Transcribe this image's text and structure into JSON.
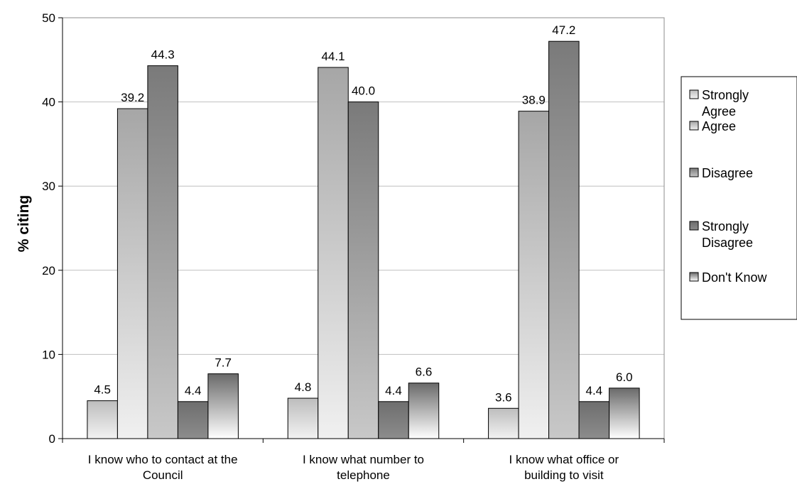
{
  "chart_data": {
    "type": "bar",
    "title": "",
    "xlabel": "",
    "ylabel": "% citing",
    "ylim": [
      0,
      50
    ],
    "yticks": [
      0,
      10,
      20,
      30,
      40,
      50
    ],
    "grid": true,
    "legend_position": "right",
    "categories": [
      [
        "I know who to contact at the",
        "Council"
      ],
      [
        "I know what number to",
        "telephone"
      ],
      [
        "I know what office or",
        "building to visit"
      ]
    ],
    "series": [
      {
        "name": [
          "Strongly",
          "Agree"
        ],
        "values": [
          4.5,
          4.8,
          3.6
        ],
        "labels": [
          "4.5",
          "4.8",
          "3.6"
        ],
        "color_dark": "#bdbdbd",
        "color_light": "#f2f2f2",
        "gradient": "up"
      },
      {
        "name": [
          "Agree"
        ],
        "values": [
          39.2,
          44.1,
          38.9
        ],
        "labels": [
          "39.2",
          "44.1",
          "38.9"
        ],
        "color_dark": "#a6a6a6",
        "color_light": "#f0f0f0",
        "gradient": "up"
      },
      {
        "name": [
          "Disagree"
        ],
        "values": [
          44.3,
          40.0,
          47.2
        ],
        "labels": [
          "44.3",
          "40.0",
          "47.2"
        ],
        "color_dark": "#7a7a7a",
        "color_light": "#c8c8c8",
        "gradient": "up"
      },
      {
        "name": [
          "Strongly",
          "Disagree"
        ],
        "values": [
          4.4,
          4.4,
          4.4
        ],
        "labels": [
          "4.4",
          "4.4",
          "4.4"
        ],
        "color_dark": "#6e6e6e",
        "color_light": "#8c8c8c",
        "gradient": "up"
      },
      {
        "name": [
          "Don't Know"
        ],
        "values": [
          7.7,
          6.6,
          6.0
        ],
        "labels": [
          "7.7",
          "6.6",
          "6.0"
        ],
        "color_dark": "#6a6a6a",
        "color_light": "#ffffff",
        "gradient": "down"
      }
    ]
  }
}
